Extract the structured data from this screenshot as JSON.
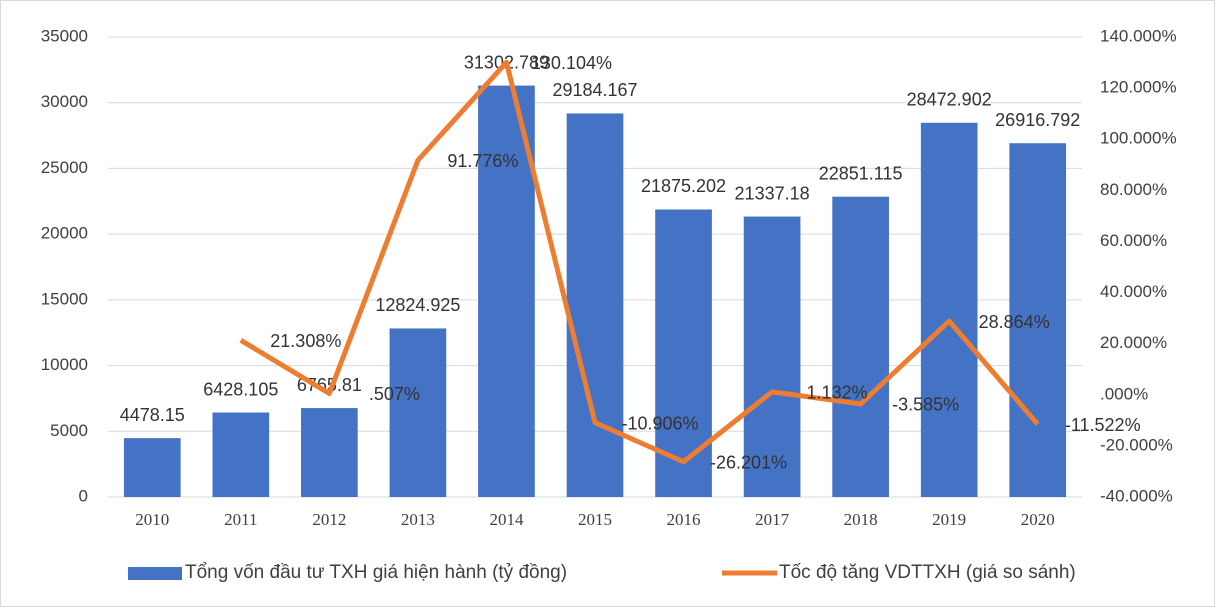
{
  "chart_data": {
    "type": "bar_line",
    "categories": [
      "2010",
      "2011",
      "2012",
      "2013",
      "2014",
      "2015",
      "2016",
      "2017",
      "2018",
      "2019",
      "2020"
    ],
    "series": [
      {
        "name": "Tổng vốn đầu tư TXH giá hiện hành (tỷ đồng)",
        "color": "#4472c4",
        "type": "bar",
        "values": [
          4478.15,
          6428.105,
          6765.81,
          12824.925,
          31302.789,
          29184.167,
          21875.202,
          21337.18,
          22851.115,
          28472.902,
          26916.792
        ]
      },
      {
        "name": "Tốc độ tăng VDTTXH (giá so sánh)",
        "color": "#ed7d31",
        "type": "line",
        "axis": "y2",
        "values": [
          null,
          21.308,
          0.507,
          91.776,
          130.104,
          -10.906,
          -26.201,
          1.132,
          -3.585,
          28.864,
          -11.522
        ],
        "value_labels": [
          null,
          "21.308%",
          ".507%",
          "91.776%",
          "130.104%",
          "-10.906%",
          "-26.201%",
          "1.132%",
          "-3.585%",
          "28.864%",
          "-11.522%"
        ]
      }
    ],
    "ylim": [
      0,
      35000
    ],
    "yticks": [
      0,
      5000,
      10000,
      15000,
      20000,
      25000,
      30000,
      35000
    ],
    "y2lim": [
      -40,
      140
    ],
    "y2ticks": [
      {
        "value": -40,
        "label": "-40.000%"
      },
      {
        "value": -20,
        "label": "-20.000%"
      },
      {
        "value": 0,
        "label": ".000%"
      },
      {
        "value": 20,
        "label": "20.000%"
      },
      {
        "value": 40,
        "label": "40.000%"
      },
      {
        "value": 60,
        "label": "60.000%"
      },
      {
        "value": 80,
        "label": "80.000%"
      },
      {
        "value": 100,
        "label": "100.000%"
      },
      {
        "value": 120,
        "label": "120.000%"
      },
      {
        "value": 140,
        "label": "140.000%"
      }
    ],
    "grid": true,
    "legend": "bottom"
  }
}
